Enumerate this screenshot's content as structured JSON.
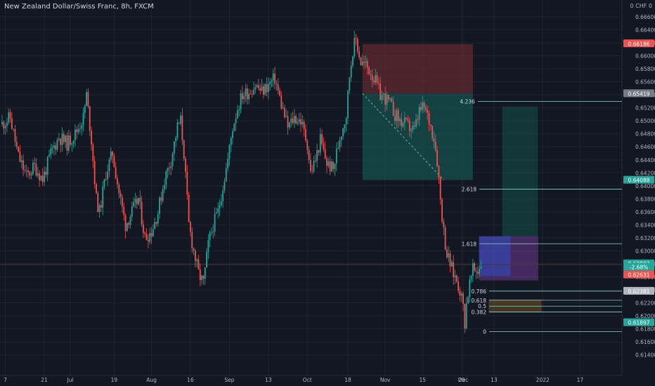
{
  "header": {
    "title": "New Zealand Dollar/Swiss Franc, 8h, FXCM",
    "currency": "0 CHF 0"
  },
  "colors": {
    "background": "#131722",
    "grid": "#1f2333",
    "up": "#26a69a",
    "down": "#ef5350",
    "fib_line": "#7fd6d0",
    "stop_zone": "#7a2d33",
    "target_zone": "#155e57",
    "blue_box": "#2962ff",
    "purple_box": "#9c4dcc",
    "orange_box": "#f5a623"
  },
  "chart_data": {
    "type": "candlestick",
    "symbol": "NZD/CHF",
    "interval": "8h",
    "ylim": [
      0.613,
      0.6675
    ],
    "y_ticks": [
      0.614,
      0.616,
      0.618,
      0.62,
      0.622,
      0.624,
      0.626,
      0.628,
      0.63,
      0.632,
      0.634,
      0.636,
      0.638,
      0.64,
      0.642,
      0.644,
      0.646,
      0.648,
      0.65,
      0.652,
      0.654,
      0.656,
      0.658,
      0.66,
      0.662,
      0.664,
      0.666
    ],
    "x_ticks": [
      {
        "label": "7",
        "idx": 2
      },
      {
        "label": "21",
        "idx": 26
      },
      {
        "label": "Jul",
        "idx": 42
      },
      {
        "label": "19",
        "idx": 69
      },
      {
        "label": "Aug",
        "idx": 92
      },
      {
        "label": "16",
        "idx": 116
      },
      {
        "label": "Sep",
        "idx": 140
      },
      {
        "label": "13",
        "idx": 164
      },
      {
        "label": "Oct",
        "idx": 188
      },
      {
        "label": "18",
        "idx": 213
      },
      {
        "label": "Nov",
        "idx": 236
      },
      {
        "label": "15",
        "idx": 259
      },
      {
        "label": "29",
        "idx": 283
      },
      {
        "label": "Dec",
        "idx": 284
      },
      {
        "label": "13",
        "idx": 303
      },
      {
        "label": "2022",
        "idx": 333
      },
      {
        "label": "17",
        "idx": 356
      }
    ],
    "n_slots": 390,
    "anchors": [
      [
        0,
        0.6495
      ],
      [
        5,
        0.6505
      ],
      [
        10,
        0.6445
      ],
      [
        15,
        0.6415
      ],
      [
        20,
        0.643
      ],
      [
        25,
        0.641
      ],
      [
        30,
        0.645
      ],
      [
        35,
        0.6475
      ],
      [
        40,
        0.6465
      ],
      [
        45,
        0.648
      ],
      [
        50,
        0.6505
      ],
      [
        52,
        0.654
      ],
      [
        55,
        0.647
      ],
      [
        58,
        0.638
      ],
      [
        60,
        0.636
      ],
      [
        64,
        0.642
      ],
      [
        68,
        0.645
      ],
      [
        72,
        0.639
      ],
      [
        76,
        0.634
      ],
      [
        80,
        0.636
      ],
      [
        84,
        0.638
      ],
      [
        88,
        0.632
      ],
      [
        92,
        0.633
      ],
      [
        96,
        0.636
      ],
      [
        100,
        0.641
      ],
      [
        104,
        0.644
      ],
      [
        108,
        0.649
      ],
      [
        110,
        0.65
      ],
      [
        112,
        0.645
      ],
      [
        115,
        0.634
      ],
      [
        118,
        0.63
      ],
      [
        121,
        0.6265
      ],
      [
        124,
        0.625
      ],
      [
        127,
        0.631
      ],
      [
        130,
        0.634
      ],
      [
        133,
        0.636
      ],
      [
        136,
        0.64
      ],
      [
        139,
        0.644
      ],
      [
        142,
        0.649
      ],
      [
        145,
        0.652
      ],
      [
        148,
        0.654
      ],
      [
        152,
        0.6545
      ],
      [
        156,
        0.6555
      ],
      [
        160,
        0.6545
      ],
      [
        164,
        0.6555
      ],
      [
        168,
        0.6565
      ],
      [
        172,
        0.6525
      ],
      [
        176,
        0.649
      ],
      [
        180,
        0.6505
      ],
      [
        184,
        0.65
      ],
      [
        188,
        0.6465
      ],
      [
        190,
        0.642
      ],
      [
        193,
        0.644
      ],
      [
        196,
        0.647
      ],
      [
        200,
        0.6435
      ],
      [
        204,
        0.6425
      ],
      [
        208,
        0.6475
      ],
      [
        212,
        0.651
      ],
      [
        214,
        0.657
      ],
      [
        216,
        0.661
      ],
      [
        218,
        0.6625
      ],
      [
        221,
        0.659
      ],
      [
        224,
        0.6585
      ],
      [
        227,
        0.6575
      ],
      [
        230,
        0.656
      ],
      [
        233,
        0.654
      ],
      [
        236,
        0.6535
      ],
      [
        239,
        0.6525
      ],
      [
        242,
        0.651
      ],
      [
        245,
        0.65
      ],
      [
        248,
        0.6495
      ],
      [
        251,
        0.649
      ],
      [
        254,
        0.6485
      ],
      [
        257,
        0.6515
      ],
      [
        260,
        0.652
      ],
      [
        263,
        0.65
      ],
      [
        266,
        0.6475
      ],
      [
        268,
        0.644
      ],
      [
        270,
        0.638
      ],
      [
        272,
        0.633
      ],
      [
        274,
        0.6295
      ],
      [
        276,
        0.628
      ],
      [
        278,
        0.6265
      ],
      [
        280,
        0.6255
      ],
      [
        282,
        0.624
      ],
      [
        284,
        0.6215
      ],
      [
        285,
        0.619
      ],
      [
        286,
        0.622
      ],
      [
        288,
        0.625
      ],
      [
        290,
        0.627
      ],
      [
        293,
        0.627
      ],
      [
        295,
        0.628
      ]
    ],
    "price_tags": [
      {
        "value": 0.66186,
        "label": "0.66186",
        "bg": "#ef5350"
      },
      {
        "value": 0.65419,
        "label": "0.65419",
        "bg": "#787b86"
      },
      {
        "value": 0.64088,
        "label": "0.64088",
        "bg": "#26a69a"
      },
      {
        "value": 0.62803,
        "label": "0.62803",
        "bg": "#26a69a"
      },
      {
        "value": 0.6275,
        "label": "-2.68%",
        "bg": "#26a69a"
      },
      {
        "value": 0.62631,
        "label": "0.62631",
        "bg": "#ef5350"
      },
      {
        "value": 0.62381,
        "label": "0.62381",
        "bg": "#b2b5be"
      },
      {
        "value": 0.61897,
        "label": "0.61897",
        "bg": "#26a69a"
      }
    ],
    "fib_levels": [
      {
        "label": "4.236",
        "value": 0.653
      },
      {
        "label": "2.618",
        "value": 0.6395
      },
      {
        "label": "1.618",
        "value": 0.6311
      },
      {
        "label": "0.786",
        "value": 0.62381
      },
      {
        "label": "0.618",
        "value": 0.6224
      },
      {
        "label": "0.5",
        "value": 0.6215
      },
      {
        "label": "0.382",
        "value": 0.6206
      },
      {
        "label": "0",
        "value": 0.6176
      }
    ]
  }
}
